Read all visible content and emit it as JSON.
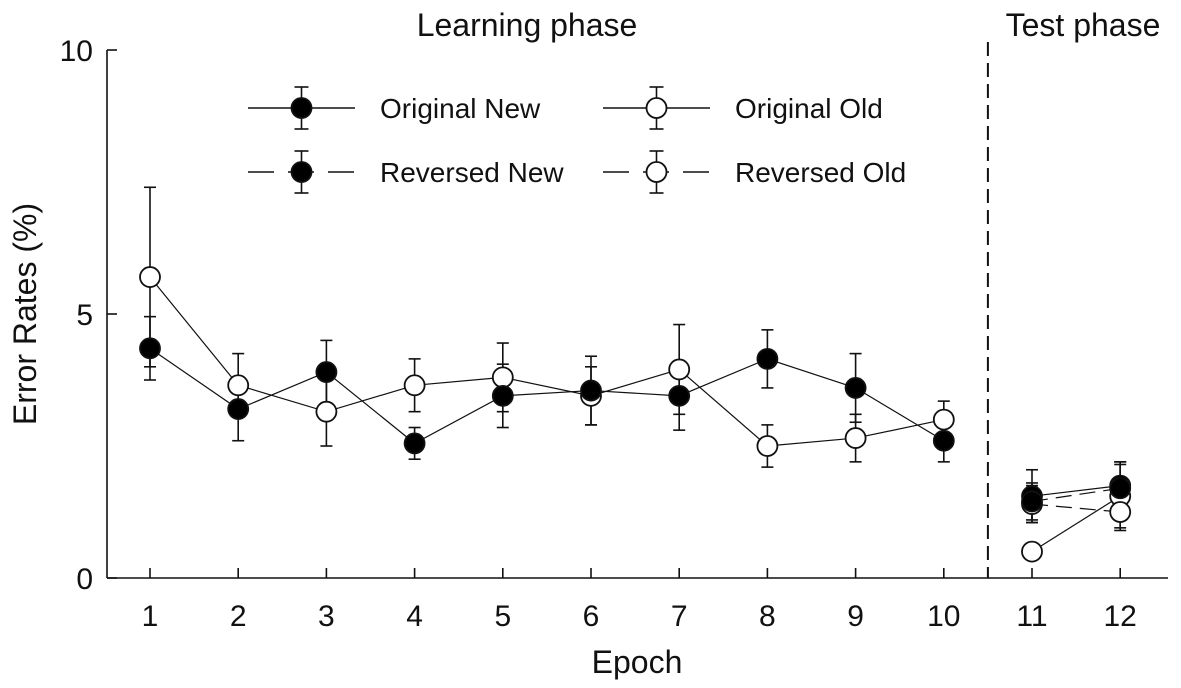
{
  "chart_data": {
    "type": "line",
    "xlabel": "Epoch",
    "ylabel": "Error Rates (%)",
    "ylim": [
      0,
      10
    ],
    "xlim": [
      0.5,
      12.5
    ],
    "x": [
      1,
      2,
      3,
      4,
      5,
      6,
      7,
      8,
      9,
      10,
      11,
      12
    ],
    "x_tick_labels": [
      "1",
      "2",
      "3",
      "4",
      "5",
      "6",
      "7",
      "8",
      "9",
      "10",
      "11",
      "12"
    ],
    "y_ticks": [
      0,
      5,
      10
    ],
    "y_tick_labels": [
      "0",
      "5",
      "10"
    ],
    "grid": false,
    "legend_position": "top",
    "phase_divider_x": 10.5,
    "phase_labels": {
      "learning": "Learning phase",
      "test": "Test phase"
    },
    "segments": [
      [
        1,
        10
      ],
      [
        11,
        12
      ]
    ],
    "series": [
      {
        "name": "Original New",
        "marker": "filled",
        "line": "solid",
        "values": [
          4.35,
          3.2,
          3.9,
          2.55,
          3.45,
          3.55,
          3.45,
          4.15,
          3.6,
          2.6,
          1.55,
          1.75
        ],
        "error": [
          0.6,
          0.6,
          0.6,
          0.3,
          0.6,
          0.65,
          0.65,
          0.55,
          0.65,
          0.4,
          0.5,
          0.45
        ]
      },
      {
        "name": "Original Old",
        "marker": "open",
        "line": "solid",
        "values": [
          5.7,
          3.65,
          3.15,
          3.65,
          3.8,
          3.45,
          3.95,
          2.5,
          2.65,
          3.0,
          0.5,
          1.55
        ],
        "error": [
          1.7,
          0.6,
          0.65,
          0.5,
          0.65,
          0.55,
          0.85,
          0.4,
          0.45,
          0.35,
          0.12,
          0.65
        ]
      },
      {
        "name": "Reversed New",
        "marker": "filled",
        "line": "dashed",
        "values": [
          null,
          null,
          null,
          null,
          null,
          null,
          null,
          null,
          null,
          null,
          1.45,
          1.7
        ],
        "error": [
          null,
          null,
          null,
          null,
          null,
          null,
          null,
          null,
          null,
          null,
          0.35,
          0.45
        ]
      },
      {
        "name": "Reversed Old",
        "marker": "open",
        "line": "dashed",
        "values": [
          null,
          null,
          null,
          null,
          null,
          null,
          null,
          null,
          null,
          null,
          1.4,
          1.25
        ],
        "error": [
          null,
          null,
          null,
          null,
          null,
          null,
          null,
          null,
          null,
          null,
          0.35,
          0.3
        ]
      }
    ]
  }
}
